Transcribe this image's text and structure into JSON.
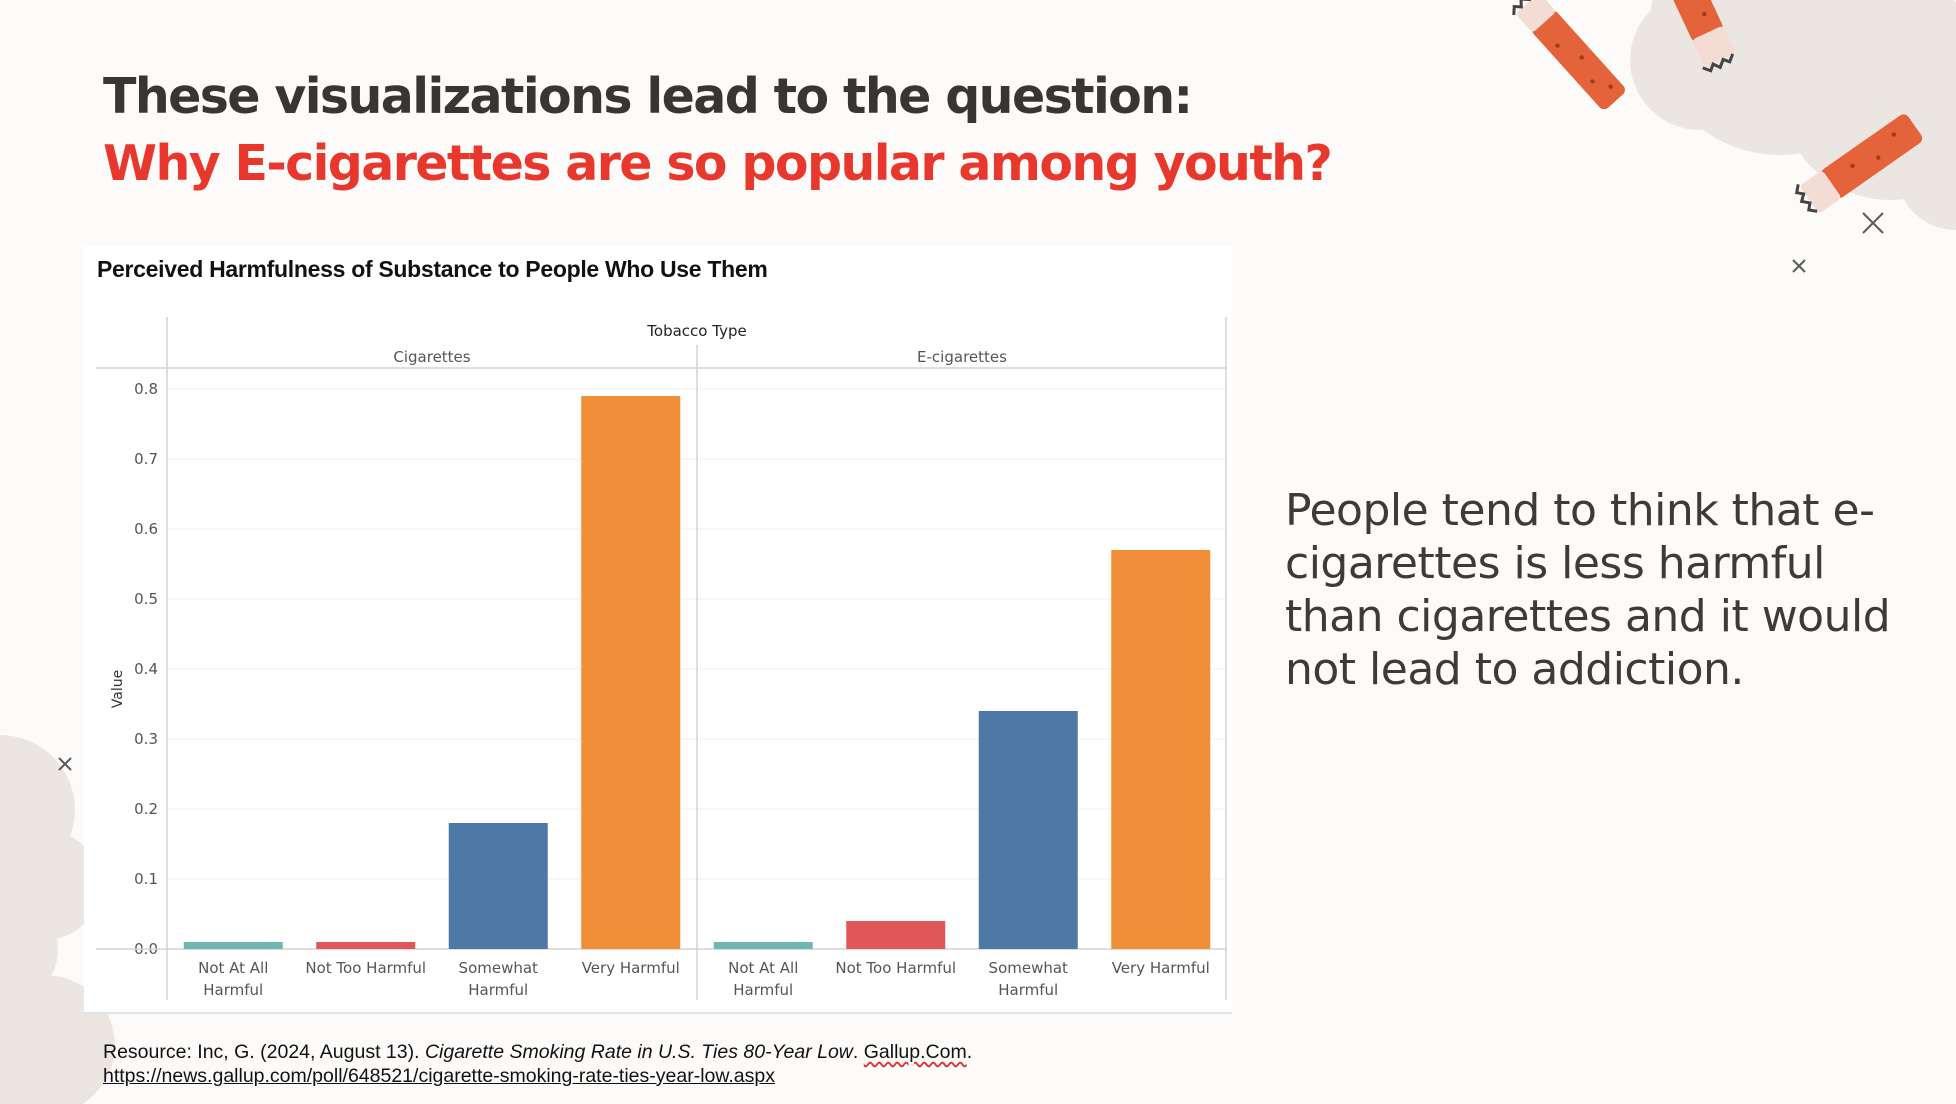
{
  "heading": {
    "line1": "These visualizations lead to the question:",
    "line2": "Why E-cigarettes are so popular among youth?"
  },
  "takeaway": "People tend to think that e-cigarettes is less harmful than cigarettes and it would not lead to addiction.",
  "resource": {
    "prefix": "Resource: Inc, G. (2024, August 13).",
    "title": "Cigarette Smoking Rate in U.S. Ties 80-Year Low",
    "site": "Gallup.Com",
    "url": "https://news.gallup.com/poll/648521/cigarette-smoking-rate-ties-year-low.aspx"
  },
  "icons": [
    "cigarette-butt-icon",
    "close-x-icon"
  ],
  "colors": {
    "title_dark": "#3a3433",
    "title_red": "#e8382d",
    "not_at_all_harmful": "#6fb7b2",
    "not_too_harmful": "#e15759",
    "somewhat_harmful": "#4e79a7",
    "very_harmful": "#f08f37"
  },
  "chart_data": {
    "type": "bar",
    "title": "Perceived Harmfulness of Substance to People Who Use Them",
    "column_header": "Tobacco Type",
    "ylabel": "Value",
    "ylim": [
      0,
      0.8
    ],
    "yticks": [
      "0.0",
      "0.1",
      "0.2",
      "0.3",
      "0.4",
      "0.5",
      "0.6",
      "0.7",
      "0.8"
    ],
    "categories": [
      "Not At All Harmful",
      "Not Too Harmful",
      "Somewhat Harmful",
      "Very Harmful"
    ],
    "category_colors": [
      "#6fb7b2",
      "#e15759",
      "#4e79a7",
      "#f08f37"
    ],
    "panels": [
      {
        "name": "Cigarettes",
        "values": [
          0.01,
          0.01,
          0.18,
          0.79
        ]
      },
      {
        "name": "E-cigarettes",
        "values": [
          0.01,
          0.04,
          0.34,
          0.57
        ]
      }
    ],
    "grid": true,
    "legend": "none"
  }
}
